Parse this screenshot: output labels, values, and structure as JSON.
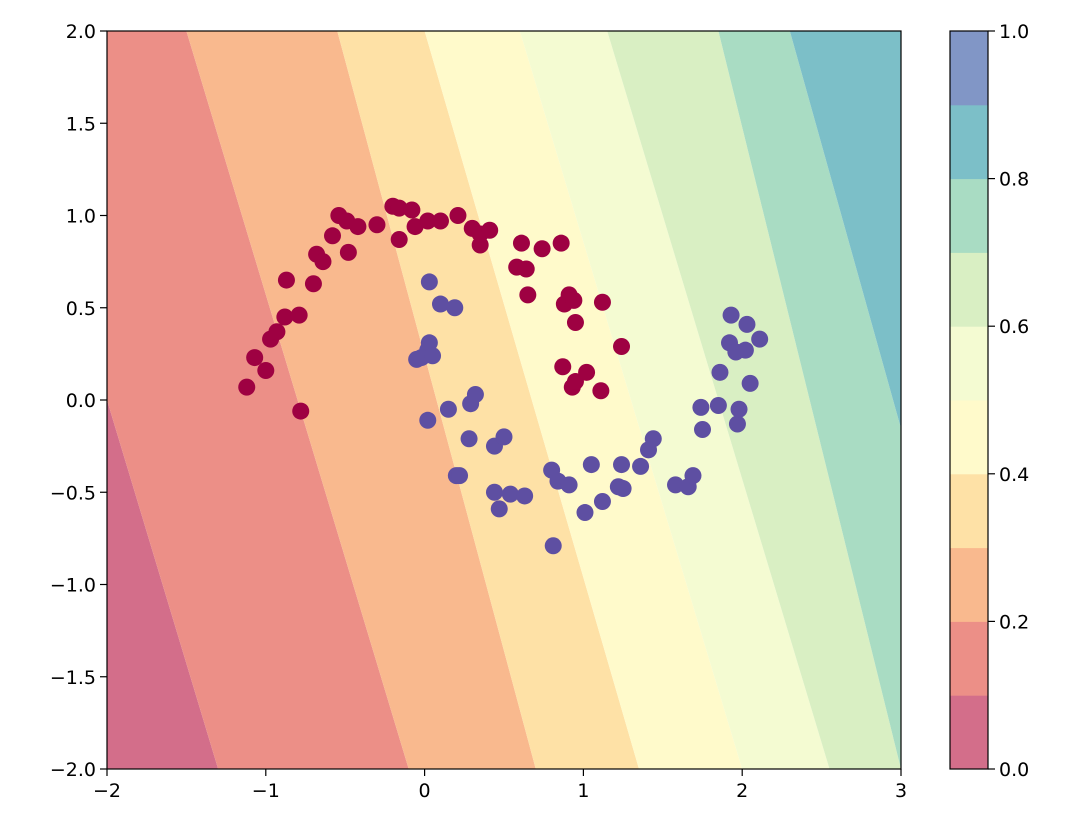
{
  "chart_data": {
    "type": "scatter",
    "title": "",
    "xlabel": "",
    "ylabel": "",
    "xlim": [
      -2,
      3
    ],
    "ylim": [
      -2,
      2
    ],
    "x_ticks": [
      "−2",
      "−1",
      "0",
      "1",
      "2",
      "3"
    ],
    "y_ticks": [
      "−2.0",
      "−1.5",
      "−1.0",
      "−0.5",
      "0.0",
      "0.5",
      "1.0",
      "1.5",
      "2.0"
    ],
    "background": {
      "type": "filled-contour",
      "description_levels": [
        0.0,
        0.1,
        0.2,
        0.3,
        0.4,
        0.5,
        0.6,
        0.7,
        0.8,
        0.9,
        1.0
      ],
      "boundaries_at_y_minus2": [
        -1.3,
        -0.1,
        0.7,
        1.35,
        2.0,
        2.55,
        3.0,
        3.6
      ],
      "boundaries_at_y_plus2": [
        -2.7,
        -1.5,
        -0.55,
        0.0,
        0.6,
        1.15,
        1.85,
        2.3
      ],
      "band_colors": [
        "#d36e8a",
        "#ec8f87",
        "#f9b98e",
        "#fee1a6",
        "#fffacb",
        "#f4fbd2",
        "#d9efc3",
        "#a9dcc3",
        "#7cbfc8",
        "#8196c6"
      ],
      "opacity": 0.8
    },
    "series": [
      {
        "class": 0,
        "color": "#9e0142",
        "points": [
          [
            -1.12,
            0.07
          ],
          [
            -1.07,
            0.23
          ],
          [
            -1.0,
            0.16
          ],
          [
            -0.97,
            0.33
          ],
          [
            -0.93,
            0.37
          ],
          [
            -0.88,
            0.45
          ],
          [
            -0.87,
            0.65
          ],
          [
            -0.79,
            0.46
          ],
          [
            -0.78,
            -0.06
          ],
          [
            -0.7,
            0.63
          ],
          [
            -0.68,
            0.79
          ],
          [
            -0.64,
            0.75
          ],
          [
            -0.58,
            0.89
          ],
          [
            -0.54,
            1.0
          ],
          [
            -0.49,
            0.97
          ],
          [
            -0.48,
            0.8
          ],
          [
            -0.42,
            0.94
          ],
          [
            -0.3,
            0.95
          ],
          [
            -0.2,
            1.05
          ],
          [
            -0.16,
            1.04
          ],
          [
            -0.16,
            0.87
          ],
          [
            -0.08,
            1.03
          ],
          [
            -0.06,
            0.94
          ],
          [
            0.02,
            0.97
          ],
          [
            0.1,
            0.97
          ],
          [
            0.21,
            1.0
          ],
          [
            0.3,
            0.93
          ],
          [
            0.35,
            0.84
          ],
          [
            0.35,
            0.9
          ],
          [
            0.41,
            0.92
          ],
          [
            0.58,
            0.72
          ],
          [
            0.61,
            0.85
          ],
          [
            0.64,
            0.71
          ],
          [
            0.65,
            0.57
          ],
          [
            0.74,
            0.82
          ],
          [
            0.86,
            0.85
          ],
          [
            0.87,
            0.18
          ],
          [
            0.88,
            0.52
          ],
          [
            0.91,
            0.57
          ],
          [
            0.93,
            0.07
          ],
          [
            0.94,
            0.54
          ],
          [
            0.95,
            0.42
          ],
          [
            0.95,
            0.1
          ],
          [
            1.02,
            0.15
          ],
          [
            1.11,
            0.05
          ],
          [
            1.12,
            0.53
          ],
          [
            1.24,
            0.29
          ]
        ]
      },
      {
        "class": 1,
        "color": "#5e4fa2",
        "points": [
          [
            -0.05,
            0.22
          ],
          [
            -0.02,
            0.23
          ],
          [
            0.02,
            0.27
          ],
          [
            0.02,
            -0.11
          ],
          [
            0.03,
            0.31
          ],
          [
            0.03,
            0.64
          ],
          [
            0.05,
            0.24
          ],
          [
            0.1,
            0.52
          ],
          [
            0.15,
            -0.05
          ],
          [
            0.19,
            0.5
          ],
          [
            0.2,
            -0.41
          ],
          [
            0.22,
            -0.41
          ],
          [
            0.28,
            -0.21
          ],
          [
            0.29,
            -0.02
          ],
          [
            0.32,
            0.03
          ],
          [
            0.44,
            -0.25
          ],
          [
            0.44,
            -0.5
          ],
          [
            0.47,
            -0.59
          ],
          [
            0.5,
            -0.2
          ],
          [
            0.54,
            -0.51
          ],
          [
            0.63,
            -0.52
          ],
          [
            0.8,
            -0.38
          ],
          [
            0.81,
            -0.79
          ],
          [
            0.84,
            -0.44
          ],
          [
            0.91,
            -0.46
          ],
          [
            1.01,
            -0.61
          ],
          [
            1.05,
            -0.35
          ],
          [
            1.12,
            -0.55
          ],
          [
            1.22,
            -0.47
          ],
          [
            1.24,
            -0.35
          ],
          [
            1.25,
            -0.48
          ],
          [
            1.36,
            -0.36
          ],
          [
            1.41,
            -0.27
          ],
          [
            1.44,
            -0.21
          ],
          [
            1.58,
            -0.46
          ],
          [
            1.66,
            -0.47
          ],
          [
            1.69,
            -0.41
          ],
          [
            1.74,
            -0.04
          ],
          [
            1.75,
            -0.16
          ],
          [
            1.85,
            -0.03
          ],
          [
            1.86,
            0.15
          ],
          [
            1.92,
            0.31
          ],
          [
            1.93,
            0.46
          ],
          [
            1.96,
            0.26
          ],
          [
            1.97,
            -0.13
          ],
          [
            1.98,
            -0.05
          ],
          [
            2.02,
            0.27
          ],
          [
            2.03,
            0.41
          ],
          [
            2.05,
            0.09
          ],
          [
            2.11,
            0.33
          ]
        ]
      }
    ],
    "colorbar": {
      "range": [
        0.0,
        1.0
      ],
      "ticks": [
        "0.0",
        "0.2",
        "0.4",
        "0.6",
        "0.8",
        "1.0"
      ],
      "colors": [
        "#d36e8a",
        "#ec8f87",
        "#f9b98e",
        "#fee1a6",
        "#fffacb",
        "#f4fbd2",
        "#d9efc3",
        "#a9dcc3",
        "#7cbfc8",
        "#8196c6"
      ]
    }
  }
}
